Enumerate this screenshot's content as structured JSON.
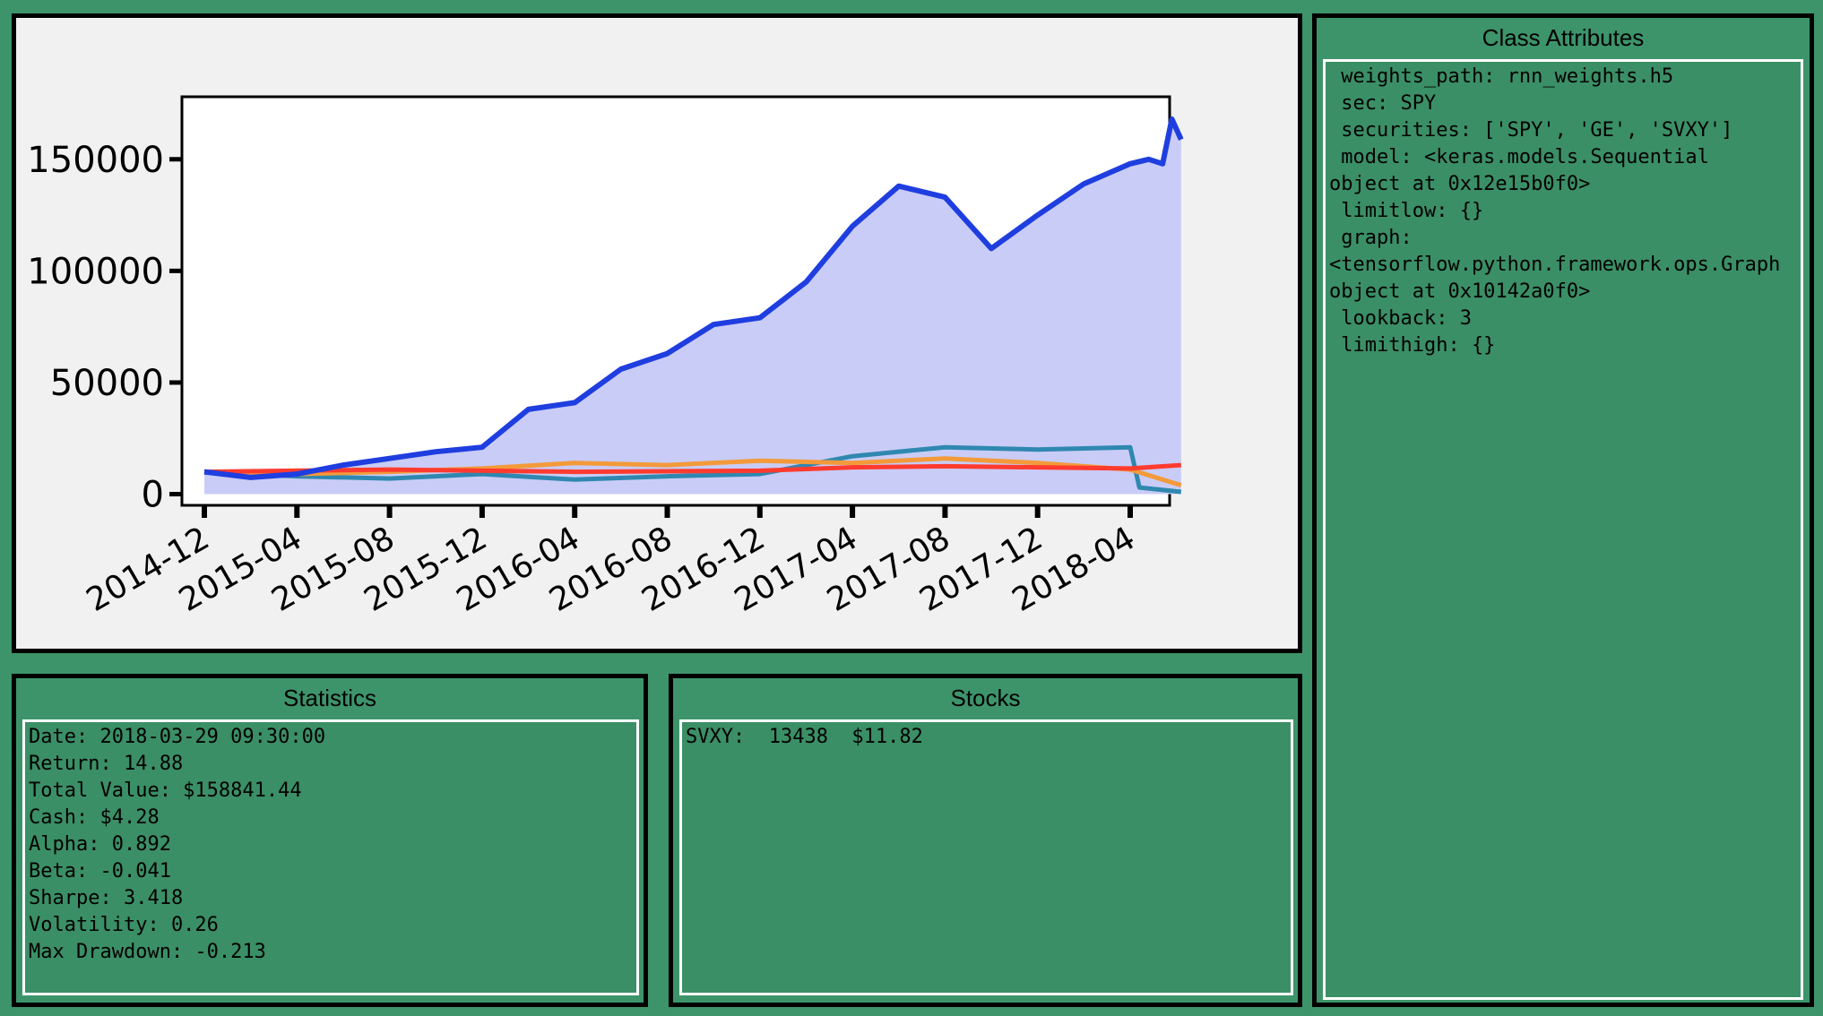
{
  "chart_data": {
    "type": "area",
    "x_tick_labels": [
      "2014-12",
      "2015-04",
      "2015-08",
      "2015-12",
      "2016-04",
      "2016-08",
      "2016-12",
      "2017-04",
      "2017-08",
      "2017-12",
      "2018-04"
    ],
    "y_tick_labels": [
      "0",
      "50000",
      "100000",
      "150000"
    ],
    "ylim": [
      -5000,
      178000
    ],
    "grid": false,
    "colors": {
      "portfolio": "#1f3ee0",
      "fill": "#c9ccf6",
      "spy": "#ff3b2f",
      "ge": "#f39a3a",
      "svxy": "#2f88b0"
    },
    "series": [
      {
        "x": [
          0,
          0.5,
          1,
          1.5,
          2,
          2.5,
          3,
          3.5,
          4,
          4.5,
          5,
          5.5,
          6,
          6.5,
          7,
          7.5,
          8,
          8.5,
          9,
          9.5,
          10,
          10.2,
          10.35,
          10.45,
          10.55
        ],
        "values": [
          10000,
          7500,
          9000,
          13000,
          16000,
          19000,
          21000,
          38000,
          41000,
          56000,
          63000,
          76000,
          79000,
          95000,
          120000,
          138000,
          133000,
          110000,
          125000,
          139000,
          148000,
          150000,
          148000,
          168000,
          158841
        ]
      },
      {
        "x": [
          0,
          2,
          4,
          6,
          7,
          8,
          9,
          10,
          10.55
        ],
        "values": [
          10000,
          11000,
          10000,
          10500,
          12000,
          12500,
          12000,
          11500,
          13000
        ]
      },
      {
        "x": [
          0,
          1,
          2,
          3,
          4,
          5,
          6,
          7,
          8,
          9,
          10,
          10.55
        ],
        "values": [
          10000,
          9000,
          10000,
          11500,
          14000,
          13000,
          15000,
          14000,
          16000,
          14000,
          11000,
          4000
        ]
      },
      {
        "x": [
          0,
          1,
          2,
          3,
          4,
          5,
          6,
          7,
          8,
          9,
          10,
          10.1,
          10.55
        ],
        "values": [
          10000,
          8000,
          7000,
          9000,
          6500,
          8000,
          9000,
          17000,
          21000,
          20000,
          21000,
          3000,
          1000
        ]
      }
    ]
  },
  "statistics": {
    "title": "Statistics",
    "lines": [
      "Date: 2018-03-29 09:30:00",
      "Return: 14.88",
      "Total Value: $158841.44",
      "Cash: $4.28",
      "Alpha: 0.892",
      "Beta: -0.041",
      "Sharpe: 3.418",
      "Volatility: 0.26",
      "Max Drawdown: -0.213"
    ]
  },
  "stocks": {
    "title": "Stocks",
    "lines": [
      "SVXY:  13438  $11.82"
    ]
  },
  "class_attributes": {
    "title": "Class Attributes",
    "lines": [
      " weights_path: rnn_weights.h5",
      " sec: SPY",
      " securities: ['SPY', 'GE', 'SVXY']",
      " model: <keras.models.Sequential",
      "object at 0x12e15b0f0>",
      " limitlow: {}",
      " graph:",
      "<tensorflow.python.framework.ops.Graph",
      "object at 0x10142a0f0>",
      " lookback: 3",
      " limithigh: {}"
    ]
  }
}
